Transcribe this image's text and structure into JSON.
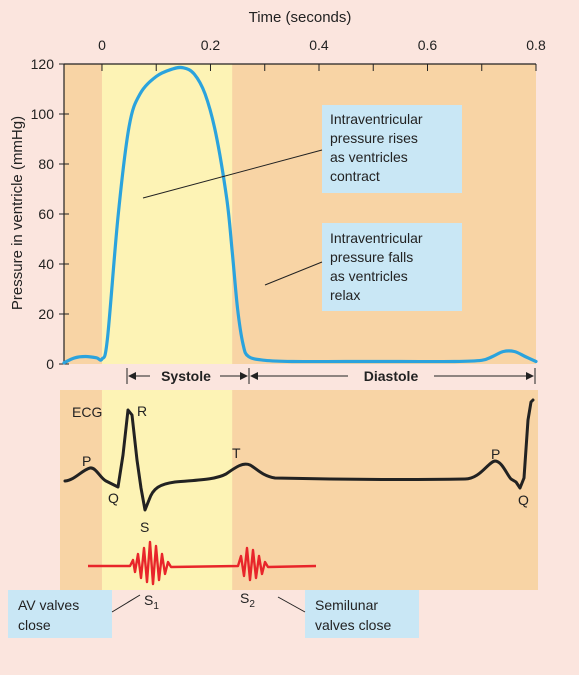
{
  "chart_data": {
    "type": "line",
    "title": "",
    "xlabel": "Time (seconds)",
    "ylabel": "Pressure in ventricle (mmHg)",
    "xlim": [
      -0.07,
      0.8
    ],
    "ylim": [
      0,
      120
    ],
    "x_ticks": [
      0,
      0.2,
      0.4,
      0.6,
      0.8
    ],
    "y_ticks": [
      0,
      20,
      40,
      60,
      80,
      100,
      120
    ],
    "grid": false,
    "systole_range": [
      0.0,
      0.24
    ],
    "diastole_range": [
      0.24,
      0.8
    ],
    "series": [
      {
        "color": "#2ba3dd",
        "x": [
          -0.07,
          -0.05,
          -0.03,
          -0.01,
          0.0,
          0.01,
          0.03,
          0.05,
          0.07,
          0.1,
          0.13,
          0.15,
          0.17,
          0.19,
          0.21,
          0.23,
          0.24,
          0.25,
          0.26,
          0.27,
          0.3,
          0.35,
          0.45,
          0.55,
          0.65,
          0.7,
          0.72,
          0.74,
          0.76,
          0.78,
          0.8
        ],
        "values": [
          0.5,
          2.5,
          3,
          2.5,
          2,
          10,
          60,
          95,
          108,
          115,
          118,
          118.5,
          116,
          108,
          92,
          66,
          45,
          22,
          8,
          3,
          1.5,
          1,
          1,
          1,
          1,
          1.5,
          3,
          5,
          5,
          3,
          1
        ]
      }
    ],
    "phases": {
      "systole": "Systole",
      "diastole": "Diastole"
    },
    "annotations": [
      {
        "text": [
          "Intraventricular",
          "pressure rises",
          "as ventricles",
          "contract"
        ]
      },
      {
        "text": [
          "Intraventricular",
          "pressure falls",
          "as ventricles",
          "relax"
        ]
      }
    ],
    "ecg": {
      "label": "ECG",
      "color": "#222222",
      "wave_labels": [
        "P",
        "Q",
        "R",
        "S",
        "T",
        "P",
        "Q"
      ]
    },
    "heart_sounds": {
      "color": "#e8252a",
      "labels": {
        "s_top": "S",
        "s1_main": "S",
        "s1_sub": "1",
        "s2_main": "S",
        "s2_sub": "2"
      }
    },
    "callouts": [
      {
        "text": [
          "AV valves",
          "close"
        ]
      },
      {
        "text": [
          "Semilunar",
          "valves close"
        ]
      }
    ],
    "colors": {
      "page": "#fbe5de",
      "diastole_band": "#f8d4a5",
      "systole_band": "#fdf3b5",
      "callout_box": "#c9e7f5"
    }
  }
}
